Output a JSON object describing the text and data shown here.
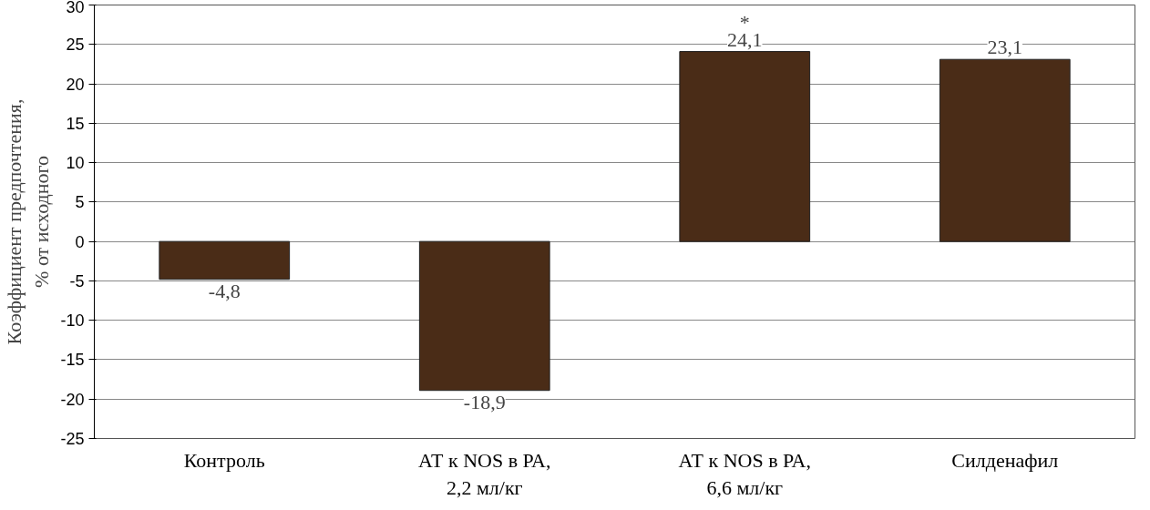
{
  "chart_data": {
    "type": "bar",
    "ylabel": "Коэффициент предпочтения,\n% от исходного",
    "categories": [
      "Контроль",
      "АТ к NOS в РА,\n2,2 мл/кг",
      "АТ к NOS в РА,\n6,6 мл/кг",
      "Силденафил"
    ],
    "values": [
      -4.8,
      -18.9,
      24.1,
      23.1
    ],
    "value_labels": [
      "-4,8",
      "-18,9",
      "24,1",
      "23,1"
    ],
    "color": "#4a2c17",
    "ylim": [
      -25,
      30
    ],
    "yticks": [
      -25,
      -20,
      -15,
      -10,
      -5,
      0,
      5,
      10,
      15,
      20,
      25,
      30
    ],
    "grid": "y",
    "annotations": [
      {
        "text": "*",
        "x": "АТ к NOS в РА,\n6,6 мл/кг",
        "y": 24.1
      }
    ]
  }
}
